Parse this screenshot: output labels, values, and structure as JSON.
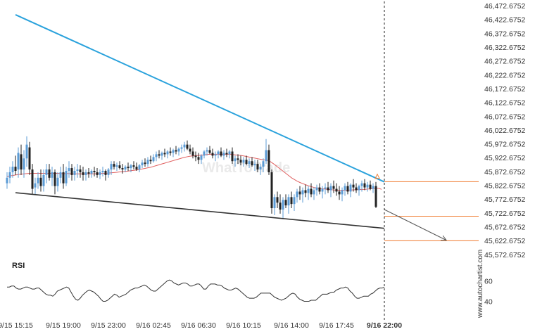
{
  "chart_data": {
    "type": "candlestick",
    "price_ticks": [
      "46,472.6752",
      "46,422.6752",
      "46,372.6752",
      "46,322.6752",
      "46,272.6752",
      "46,222.6752",
      "46,172.6752",
      "46,122.6752",
      "46,072.6752",
      "46,022.6752",
      "45,972.6752",
      "45,922.6752",
      "45,872.6752",
      "45,822.6752",
      "45,772.6752",
      "45,722.6752",
      "45,672.6752",
      "45,622.6752",
      "45,572.6752"
    ],
    "price_tick_values": [
      46472.6752,
      46422.6752,
      46372.6752,
      46322.6752,
      46272.6752,
      46222.6752,
      46172.6752,
      46122.6752,
      46072.6752,
      46022.6752,
      45972.6752,
      45922.6752,
      45872.6752,
      45822.6752,
      45772.6752,
      45722.6752,
      45672.6752,
      45622.6752,
      45572.6752
    ],
    "ylim": [
      45562,
      46478
    ],
    "time_ticks": [
      "9/15 15:15",
      "9/15 19:00",
      "9/15 23:00",
      "9/16 02:45",
      "9/16 06:30",
      "9/16 10:15",
      "9/16 14:00",
      "9/16 17:45",
      "9/16 22:00"
    ],
    "time_tick_index": [
      3,
      20,
      36,
      52,
      68,
      84,
      101,
      117,
      134
    ],
    "last_index": 134,
    "ohlc": [
      [
        45830,
        45870,
        45810,
        45850
      ],
      [
        45850,
        45890,
        45830,
        45870
      ],
      [
        45870,
        45910,
        45850,
        45890
      ],
      [
        45890,
        45930,
        45860,
        45875
      ],
      [
        45880,
        45960,
        45850,
        45940
      ],
      [
        45935,
        45970,
        45860,
        45880
      ],
      [
        45880,
        45950,
        45850,
        45920
      ],
      [
        45920,
        46000,
        45890,
        45970
      ],
      [
        45960,
        45980,
        45860,
        45880
      ],
      [
        45880,
        45900,
        45790,
        45810
      ],
      [
        45815,
        45850,
        45790,
        45830
      ],
      [
        45830,
        45870,
        45810,
        45850
      ],
      [
        45850,
        45880,
        45800,
        45820
      ],
      [
        45820,
        45880,
        45800,
        45860
      ],
      [
        45860,
        45900,
        45830,
        45880
      ],
      [
        45880,
        45900,
        45840,
        45850
      ],
      [
        45850,
        45890,
        45820,
        45870
      ],
      [
        45870,
        45880,
        45790,
        45820
      ],
      [
        45820,
        45870,
        45800,
        45850
      ],
      [
        45850,
        45890,
        45830,
        45870
      ],
      [
        45870,
        45900,
        45810,
        45830
      ],
      [
        45830,
        45890,
        45820,
        45875
      ],
      [
        45875,
        45910,
        45850,
        45885
      ],
      [
        45885,
        45900,
        45840,
        45860
      ],
      [
        45860,
        45890,
        45840,
        45875
      ],
      [
        45875,
        45900,
        45850,
        45880
      ],
      [
        45880,
        45895,
        45850,
        45870
      ],
      [
        45870,
        45890,
        45840,
        45860
      ],
      [
        45860,
        45880,
        45840,
        45870
      ],
      [
        45870,
        45885,
        45850,
        45865
      ],
      [
        45865,
        45880,
        45850,
        45875
      ],
      [
        45875,
        45890,
        45855,
        45870
      ],
      [
        45870,
        45885,
        45850,
        45860
      ],
      [
        45860,
        45880,
        45845,
        45870
      ],
      [
        45870,
        45890,
        45855,
        45875
      ],
      [
        45875,
        45880,
        45840,
        45860
      ],
      [
        45860,
        45885,
        45850,
        45880
      ],
      [
        45880,
        45910,
        45860,
        45900
      ],
      [
        45900,
        45910,
        45880,
        45890
      ],
      [
        45890,
        45905,
        45875,
        45895
      ],
      [
        45895,
        45910,
        45880,
        45885
      ],
      [
        45885,
        45900,
        45865,
        45880
      ],
      [
        45880,
        45895,
        45870,
        45890
      ],
      [
        45890,
        45905,
        45875,
        45885
      ],
      [
        45885,
        45900,
        45870,
        45895
      ],
      [
        45895,
        45910,
        45880,
        45890
      ],
      [
        45890,
        45905,
        45875,
        45880
      ],
      [
        45880,
        45900,
        45870,
        45895
      ],
      [
        45895,
        45915,
        45885,
        45905
      ],
      [
        45905,
        45920,
        45890,
        45900
      ],
      [
        45900,
        45925,
        45890,
        45915
      ],
      [
        45915,
        45930,
        45900,
        45910
      ],
      [
        45910,
        45935,
        45905,
        45925
      ],
      [
        45925,
        45945,
        45910,
        45935
      ],
      [
        45935,
        45950,
        45920,
        45930
      ],
      [
        45930,
        45945,
        45915,
        45940
      ],
      [
        45940,
        45955,
        45925,
        45935
      ],
      [
        45935,
        45950,
        45920,
        45945
      ],
      [
        45945,
        45960,
        45930,
        45940
      ],
      [
        45940,
        45955,
        45925,
        45950
      ],
      [
        45950,
        45965,
        45935,
        45945
      ],
      [
        45945,
        45960,
        45930,
        45955
      ],
      [
        45955,
        45970,
        45940,
        45960
      ],
      [
        45960,
        45980,
        45945,
        45970
      ],
      [
        45970,
        45985,
        45950,
        45955
      ],
      [
        45955,
        45970,
        45935,
        45945
      ],
      [
        45945,
        45960,
        45920,
        45930
      ],
      [
        45930,
        45945,
        45910,
        45925
      ],
      [
        45925,
        45940,
        45900,
        45915
      ],
      [
        45915,
        45935,
        45900,
        45930
      ],
      [
        45930,
        45950,
        45920,
        45945
      ],
      [
        45945,
        45960,
        45930,
        45950
      ],
      [
        45950,
        45965,
        45935,
        45940
      ],
      [
        45940,
        45955,
        45920,
        45930
      ],
      [
        45930,
        45945,
        45910,
        45935
      ],
      [
        45935,
        45950,
        45920,
        45945
      ],
      [
        45945,
        45960,
        45925,
        45930
      ],
      [
        45930,
        45950,
        45915,
        45940
      ],
      [
        45940,
        45955,
        45925,
        45935
      ],
      [
        45935,
        45950,
        45920,
        45945
      ],
      [
        45945,
        45960,
        45900,
        45910
      ],
      [
        45910,
        45930,
        45890,
        45920
      ],
      [
        45920,
        45935,
        45900,
        45915
      ],
      [
        45915,
        45930,
        45895,
        45905
      ],
      [
        45905,
        45925,
        45890,
        45915
      ],
      [
        45915,
        45930,
        45895,
        45900
      ],
      [
        45900,
        45920,
        45885,
        45910
      ],
      [
        45910,
        45925,
        45890,
        45895
      ],
      [
        45895,
        45915,
        45875,
        45900
      ],
      [
        45900,
        45915,
        45870,
        45880
      ],
      [
        45880,
        45900,
        45860,
        45890
      ],
      [
        45890,
        45920,
        45870,
        45910
      ],
      [
        45910,
        45990,
        45900,
        45950
      ],
      [
        45950,
        45970,
        45860,
        45870
      ],
      [
        45870,
        45880,
        45720,
        45740
      ],
      [
        45740,
        45790,
        45715,
        45780
      ],
      [
        45780,
        45800,
        45740,
        45760
      ],
      [
        45760,
        45790,
        45720,
        45735
      ],
      [
        45735,
        45780,
        45700,
        45770
      ],
      [
        45770,
        45790,
        45740,
        45750
      ],
      [
        45750,
        45790,
        45720,
        45780
      ],
      [
        45780,
        45800,
        45740,
        45755
      ],
      [
        45755,
        45790,
        45730,
        45780
      ],
      [
        45780,
        45810,
        45760,
        45800
      ],
      [
        45800,
        45820,
        45770,
        45790
      ],
      [
        45790,
        45815,
        45760,
        45805
      ],
      [
        45805,
        45825,
        45780,
        45795
      ],
      [
        45795,
        45820,
        45770,
        45810
      ],
      [
        45810,
        45830,
        45780,
        45790
      ],
      [
        45790,
        45815,
        45770,
        45805
      ],
      [
        45805,
        45825,
        45785,
        45815
      ],
      [
        45815,
        45830,
        45790,
        45800
      ],
      [
        45800,
        45820,
        45775,
        45810
      ],
      [
        45810,
        45830,
        45790,
        45815
      ],
      [
        45815,
        45835,
        45795,
        45805
      ],
      [
        45805,
        45830,
        45780,
        45820
      ],
      [
        45820,
        45840,
        45795,
        45810
      ],
      [
        45810,
        45830,
        45785,
        45800
      ],
      [
        45800,
        45820,
        45770,
        45790
      ],
      [
        45790,
        45815,
        45765,
        45805
      ],
      [
        45805,
        45830,
        45785,
        45820
      ],
      [
        45820,
        45835,
        45790,
        45800
      ],
      [
        45800,
        45830,
        45780,
        45825
      ],
      [
        45825,
        45845,
        45800,
        45815
      ],
      [
        45815,
        45830,
        45795,
        45805
      ],
      [
        45805,
        45825,
        45785,
        45820
      ],
      [
        45820,
        45840,
        45800,
        45830
      ],
      [
        45830,
        45845,
        45805,
        45815
      ],
      [
        45815,
        45835,
        45800,
        45825
      ],
      [
        45825,
        45840,
        45805,
        45810
      ],
      [
        45810,
        45830,
        45795,
        45820
      ],
      [
        45820,
        45835,
        45740,
        45745
      ]
    ],
    "sma": [
      45855,
      45857,
      45858,
      45860,
      45862,
      45863,
      45864,
      45865,
      45866,
      45866,
      45866,
      45866,
      45866,
      45866,
      45866,
      45866,
      45866,
      45866,
      45866,
      45865,
      45865,
      45865,
      45865,
      45864,
      45864,
      45864,
      45864,
      45864,
      45864,
      45864,
      45864,
      45864,
      45865,
      45865,
      45866,
      45866,
      45867,
      45868,
      45869,
      45870,
      45871,
      45872,
      45873,
      45874,
      45876,
      45877,
      45878,
      45880,
      45882,
      45884,
      45886,
      45888,
      45891,
      45894,
      45897,
      45900,
      45903,
      45906,
      45909,
      45912,
      45915,
      45918,
      45921,
      45924,
      45926,
      45928,
      45929,
      45930,
      45931,
      45932,
      45933,
      45934,
      45935,
      45935,
      45935,
      45935,
      45935,
      45935,
      45935,
      45935,
      45934,
      45933,
      45932,
      45931,
      45929,
      45927,
      45925,
      45923,
      45921,
      45919,
      45917,
      45915,
      45914,
      45912,
      45905,
      45898,
      45890,
      45882,
      45874,
      45866,
      45858,
      45850,
      45844,
      45838,
      45833,
      45829,
      45825,
      45821,
      45818,
      45815,
      45813,
      45811,
      45810,
      45809,
      45808,
      45807,
      45806,
      45805,
      45805,
      45805,
      45805,
      45805,
      45806,
      45806,
      45807,
      45807,
      45808,
      45808,
      45809,
      45810,
      45811,
      45812,
      45812,
      45808
    ],
    "resistance_line": {
      "start": [
        3,
        46440
      ],
      "end": [
        134,
        45835
      ]
    },
    "support_line": {
      "start": [
        3,
        45796
      ],
      "end": [
        134,
        45667
      ]
    },
    "breakout_levels": [
      45836,
      45711,
      45622
    ],
    "forecast": {
      "start": [
        134,
        45735
      ],
      "end": [
        156,
        45624
      ]
    },
    "rsi": {
      "label": "RSI",
      "ticks": [
        "60",
        "40"
      ],
      "tick_values": [
        60,
        40
      ],
      "ylim": [
        32,
        68
      ],
      "values": [
        54,
        54,
        55,
        55,
        53,
        52,
        52,
        53,
        54,
        54,
        53,
        52,
        52,
        53,
        53,
        51,
        49,
        47,
        46,
        46,
        45,
        47,
        50,
        51,
        52,
        53,
        54,
        53,
        49,
        45,
        42,
        41,
        43,
        46,
        48,
        50,
        51,
        50,
        49,
        47,
        45,
        42,
        40,
        40,
        41,
        43,
        45,
        47,
        46,
        44,
        45,
        46,
        47,
        49,
        51,
        52,
        53,
        53,
        54,
        55,
        56,
        55,
        53,
        51,
        50,
        50,
        52,
        54,
        56,
        58,
        60,
        61,
        60,
        58,
        57,
        56,
        57,
        58,
        58,
        57,
        55,
        55,
        56,
        57,
        57,
        55,
        52,
        52,
        55,
        57,
        57,
        57,
        56,
        56,
        55,
        53,
        52,
        51,
        51,
        52,
        53,
        52,
        50,
        48,
        46,
        44,
        43,
        43,
        43,
        44,
        46,
        48,
        48,
        48,
        48,
        48,
        46,
        44,
        43,
        42,
        41,
        42,
        43,
        45,
        47,
        48,
        47,
        44,
        42,
        41,
        40,
        40,
        40,
        41,
        41,
        41,
        43,
        45,
        47,
        47,
        47,
        48,
        49,
        49,
        51,
        52,
        53,
        53,
        54,
        53,
        50,
        48,
        45,
        43,
        43,
        44,
        45,
        45,
        45,
        47,
        48,
        50,
        52,
        53,
        53,
        54
      ]
    },
    "watermark_text": "WhatToTrade",
    "colors": {
      "bull": "#5b9bd5",
      "bear": "#222222",
      "sma": "#e06060",
      "resistance": "#2aa2dc",
      "support": "#333333",
      "level": "#f07c30",
      "forecast": "#555555",
      "rsi": "#333333"
    }
  },
  "vertical_label": "www.autochartist.com"
}
